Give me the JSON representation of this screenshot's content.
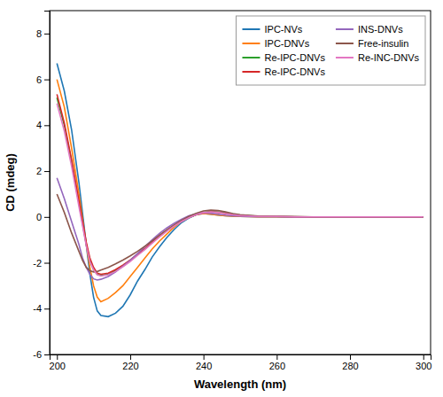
{
  "chart_data": {
    "type": "line",
    "xlabel": "Wavelength (nm)",
    "ylabel": "CD (mdeg)",
    "xlim": [
      198,
      302
    ],
    "ylim": [
      -6,
      9
    ],
    "xticks": [
      200,
      220,
      240,
      260,
      280,
      300
    ],
    "yticks": [
      -6,
      -4,
      -2,
      0,
      2,
      4,
      6,
      8
    ],
    "grid": false,
    "legend": "upper right",
    "series": [
      {
        "name": "IPC-NVs",
        "x": [
          200,
          202,
          204,
          206,
          208,
          209,
          210,
          211,
          212,
          214,
          216,
          218,
          220,
          222,
          224,
          226,
          228,
          230,
          232,
          234,
          236,
          238,
          240,
          242,
          244,
          246,
          248,
          250,
          255,
          260,
          265,
          270,
          275,
          280,
          285,
          290,
          295,
          300
        ],
        "values": [
          6.7,
          5.5,
          3.8,
          1.5,
          -1.2,
          -2.5,
          -3.5,
          -4.1,
          -4.3,
          -4.35,
          -4.2,
          -3.9,
          -3.4,
          -2.8,
          -2.3,
          -1.75,
          -1.3,
          -0.9,
          -0.55,
          -0.25,
          -0.05,
          0.1,
          0.15,
          0.12,
          0.08,
          0.05,
          0.03,
          0.02,
          0.0,
          0.0,
          0.0,
          0.0,
          0.0,
          0.0,
          0.0,
          0.0,
          0.0,
          0.0
        ]
      },
      {
        "name": "IPC-DNVs",
        "x": [
          200,
          202,
          204,
          206,
          208,
          209,
          210,
          211,
          212,
          214,
          216,
          218,
          220,
          222,
          224,
          226,
          228,
          230,
          232,
          234,
          236,
          238,
          240,
          242,
          244,
          246,
          248,
          250,
          255,
          260,
          265,
          270,
          275,
          280,
          285,
          290,
          295,
          300
        ],
        "values": [
          6.0,
          4.8,
          3.0,
          1.0,
          -1.2,
          -2.2,
          -3.0,
          -3.5,
          -3.7,
          -3.55,
          -3.3,
          -3.0,
          -2.6,
          -2.2,
          -1.8,
          -1.4,
          -1.05,
          -0.75,
          -0.45,
          -0.2,
          -0.02,
          0.1,
          0.15,
          0.12,
          0.08,
          0.05,
          0.03,
          0.02,
          0.0,
          0.0,
          0.0,
          0.0,
          0.0,
          0.0,
          0.0,
          0.0,
          0.0,
          0.0
        ]
      },
      {
        "name": "Re-IPC-DNVs",
        "x": [
          200,
          202,
          204,
          206,
          207,
          208,
          209,
          210,
          211,
          212,
          214,
          216,
          218,
          220,
          222,
          224,
          226,
          228,
          230,
          232,
          234,
          236,
          238,
          240,
          242,
          244,
          246,
          248,
          250,
          255,
          260,
          265,
          270,
          275,
          280,
          285,
          290,
          295,
          300
        ],
        "values": [
          5.2,
          4.0,
          2.4,
          0.6,
          -0.3,
          -1.2,
          -1.9,
          -2.3,
          -2.5,
          -2.55,
          -2.5,
          -2.35,
          -2.15,
          -1.9,
          -1.65,
          -1.4,
          -1.12,
          -0.85,
          -0.6,
          -0.38,
          -0.18,
          -0.04,
          0.1,
          0.2,
          0.24,
          0.22,
          0.18,
          0.13,
          0.08,
          0.03,
          0.02,
          0.0,
          0.0,
          0.0,
          0.0,
          0.0,
          0.0,
          0.0,
          0.0
        ]
      },
      {
        "name": "Re-IPC-DNVs",
        "x": [
          200,
          202,
          204,
          206,
          207,
          208,
          209,
          210,
          211,
          212,
          214,
          216,
          218,
          220,
          222,
          224,
          226,
          228,
          230,
          232,
          234,
          236,
          238,
          240,
          242,
          244,
          246,
          248,
          250,
          255,
          260,
          265,
          270,
          275,
          280,
          285,
          290,
          295,
          300
        ],
        "values": [
          5.35,
          4.1,
          2.5,
          0.7,
          -0.2,
          -1.1,
          -1.8,
          -2.2,
          -2.45,
          -2.5,
          -2.45,
          -2.3,
          -2.1,
          -1.88,
          -1.62,
          -1.38,
          -1.1,
          -0.82,
          -0.58,
          -0.36,
          -0.16,
          -0.02,
          0.1,
          0.18,
          0.22,
          0.2,
          0.15,
          0.1,
          0.06,
          0.02,
          0.02,
          0.0,
          0.0,
          0.0,
          0.0,
          0.0,
          0.0,
          0.0,
          0.0
        ]
      },
      {
        "name": "INS-DNVs",
        "x": [
          200,
          202,
          204,
          206,
          207,
          208,
          209,
          210,
          211,
          212,
          214,
          216,
          218,
          220,
          222,
          224,
          226,
          228,
          230,
          232,
          234,
          236,
          238,
          240,
          242,
          244,
          246,
          248,
          250,
          255,
          260,
          265,
          270,
          275,
          280,
          285,
          290,
          295,
          300
        ],
        "values": [
          1.7,
          0.8,
          -0.2,
          -1.2,
          -1.8,
          -2.2,
          -2.5,
          -2.7,
          -2.75,
          -2.72,
          -2.6,
          -2.4,
          -2.15,
          -1.9,
          -1.6,
          -1.3,
          -1.0,
          -0.72,
          -0.48,
          -0.28,
          -0.1,
          0.05,
          0.14,
          0.18,
          0.16,
          0.12,
          0.08,
          0.05,
          0.03,
          0.01,
          0.01,
          0.0,
          0.0,
          0.0,
          0.0,
          0.0,
          0.0,
          0.0,
          0.0
        ]
      },
      {
        "name": "Free-insulin",
        "x": [
          200,
          202,
          204,
          206,
          207,
          208,
          209,
          210,
          211,
          212,
          214,
          216,
          218,
          220,
          222,
          224,
          226,
          228,
          230,
          232,
          234,
          236,
          238,
          240,
          242,
          244,
          246,
          248,
          250,
          255,
          260,
          265,
          270,
          275,
          280,
          285,
          290,
          295,
          300
        ],
        "values": [
          1.0,
          0.2,
          -0.7,
          -1.5,
          -1.9,
          -2.2,
          -2.35,
          -2.4,
          -2.38,
          -2.32,
          -2.2,
          -2.05,
          -1.88,
          -1.7,
          -1.5,
          -1.28,
          -1.05,
          -0.8,
          -0.56,
          -0.35,
          -0.15,
          0.02,
          0.16,
          0.26,
          0.3,
          0.28,
          0.22,
          0.15,
          0.1,
          0.04,
          0.02,
          0.02,
          0.0,
          0.0,
          0.0,
          0.0,
          0.0,
          0.0,
          0.0
        ]
      },
      {
        "name": "Re-INC-DNVs",
        "x": [
          200,
          202,
          204,
          206,
          207,
          208,
          209,
          210,
          211,
          212,
          214,
          216,
          218,
          220,
          222,
          224,
          226,
          228,
          230,
          232,
          234,
          236,
          238,
          240,
          242,
          244,
          246,
          248,
          250,
          255,
          260,
          265,
          270,
          275,
          280,
          285,
          290,
          295,
          300
        ],
        "values": [
          4.95,
          3.75,
          2.2,
          0.45,
          -0.4,
          -1.25,
          -1.95,
          -2.3,
          -2.52,
          -2.58,
          -2.52,
          -2.38,
          -2.18,
          -1.95,
          -1.68,
          -1.42,
          -1.14,
          -0.87,
          -0.62,
          -0.4,
          -0.2,
          -0.04,
          0.1,
          0.19,
          0.22,
          0.2,
          0.15,
          0.1,
          0.06,
          0.02,
          0.02,
          0.0,
          0.0,
          0.0,
          0.0,
          0.0,
          0.0,
          0.0,
          0.0
        ]
      }
    ]
  }
}
